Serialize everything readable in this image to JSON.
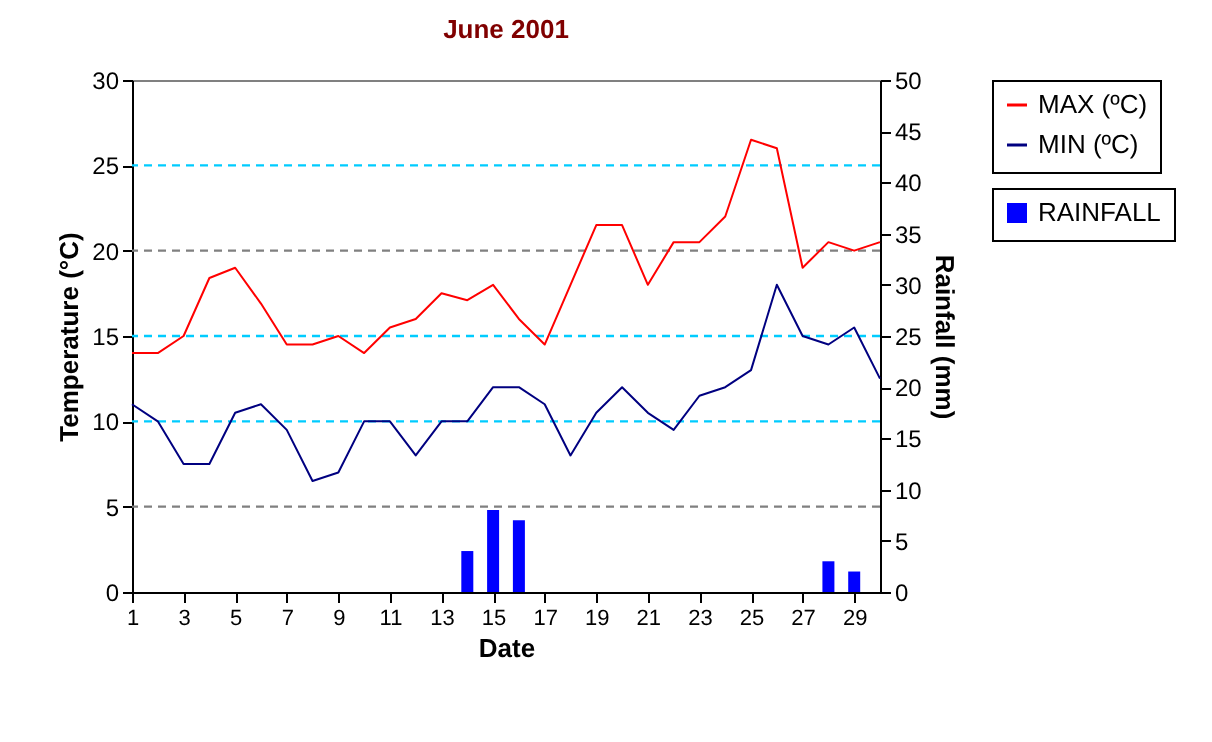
{
  "chart_data": {
    "type": "line",
    "title": "June 2001",
    "xlabel": "Date",
    "ylabel": "Temperature (°C)",
    "y2label": "Rainfall (mm)",
    "x": [
      1,
      2,
      3,
      4,
      5,
      6,
      7,
      8,
      9,
      10,
      11,
      12,
      13,
      14,
      15,
      16,
      17,
      18,
      19,
      20,
      21,
      22,
      23,
      24,
      25,
      26,
      27,
      28,
      29,
      30
    ],
    "series": [
      {
        "name": "MAX (ºC)",
        "color": "#ff0000",
        "values": [
          14,
          14,
          15,
          18.4,
          19,
          16.9,
          14.5,
          14.5,
          15,
          14,
          15.5,
          16,
          17.5,
          17.1,
          18,
          16,
          14.5,
          18,
          21.5,
          21.5,
          18,
          20.5,
          20.5,
          22,
          26.5,
          26,
          19,
          20.5,
          20,
          20.5
        ]
      },
      {
        "name": "MIN (ºC)",
        "color": "#000080",
        "values": [
          11,
          10,
          7.5,
          7.5,
          10.5,
          11,
          9.5,
          6.5,
          7,
          10,
          10,
          8,
          10,
          10,
          12,
          12,
          11,
          8,
          10.5,
          12,
          10.5,
          9.5,
          11.5,
          12,
          13,
          18,
          15,
          14.5,
          15.5,
          12.5
        ]
      },
      {
        "name": "RAINFALL",
        "type": "bar",
        "axis": "y2",
        "color": "#0000ff",
        "values": [
          null,
          null,
          null,
          null,
          null,
          null,
          null,
          null,
          null,
          null,
          null,
          null,
          null,
          4,
          8,
          7,
          null,
          null,
          null,
          null,
          null,
          null,
          null,
          null,
          null,
          null,
          null,
          3,
          2,
          null
        ]
      }
    ],
    "xlim": [
      1,
      30
    ],
    "xticks": [
      1,
      3,
      5,
      7,
      9,
      11,
      13,
      15,
      17,
      19,
      21,
      23,
      25,
      27,
      29
    ],
    "ylim": [
      0,
      30
    ],
    "yticks": [
      0,
      5,
      10,
      15,
      20,
      25,
      30
    ],
    "y2lim": [
      0,
      50
    ],
    "y2ticks": [
      0,
      5,
      10,
      15,
      20,
      25,
      30,
      35,
      40,
      45,
      50
    ],
    "ref_lines": [
      {
        "axis": "y",
        "value": 5,
        "color": "#808080",
        "line_style": "dashed"
      },
      {
        "axis": "y",
        "value": 20,
        "color": "#808080",
        "line_style": "dashed"
      },
      {
        "axis": "y",
        "value": 10,
        "color": "#00ccff",
        "line_style": "dashed"
      },
      {
        "axis": "y",
        "value": 15,
        "color": "#00ccff",
        "line_style": "dashed"
      },
      {
        "axis": "y",
        "value": 25,
        "color": "#00ccff",
        "line_style": "dashed"
      }
    ],
    "legend": "right"
  }
}
